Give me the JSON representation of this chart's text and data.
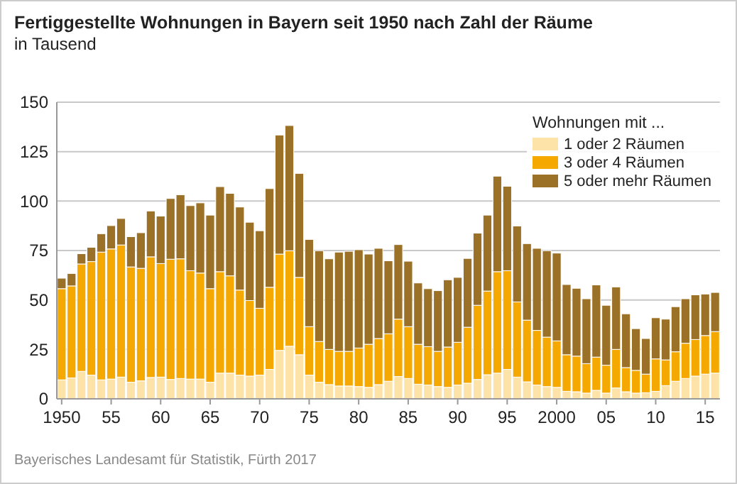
{
  "chart_data": {
    "type": "bar",
    "stacked": true,
    "title": "Fertiggestellte Wohnungen in Bayern seit 1950 nach Zahl der Räume",
    "subtitle": "in Tausend",
    "legend_title": "Wohnungen mit ...",
    "annotations": [
      "Bayerisches Landesamt für Statistik, Fürth 2017"
    ],
    "categories": [
      "1950",
      null,
      null,
      null,
      null,
      "55",
      null,
      null,
      null,
      null,
      "60",
      null,
      null,
      null,
      null,
      "65",
      null,
      null,
      null,
      null,
      "70",
      null,
      null,
      null,
      null,
      "75",
      null,
      null,
      null,
      null,
      "80",
      null,
      null,
      null,
      null,
      "85",
      null,
      null,
      null,
      null,
      "90",
      null,
      null,
      null,
      null,
      "95",
      null,
      null,
      null,
      null,
      "2000",
      null,
      null,
      null,
      null,
      "05",
      null,
      null,
      null,
      null,
      "10",
      null,
      null,
      null,
      null,
      "15",
      null
    ],
    "series": [
      {
        "name": "1 oder 2 Räumen",
        "color": "#fde3a7",
        "values": [
          9.6,
          10.6,
          13.9,
          12,
          9.6,
          10,
          11,
          8.4,
          9.1,
          10.8,
          11,
          9.8,
          10.3,
          10,
          10,
          8.4,
          13,
          13,
          12,
          11.5,
          12,
          14.9,
          24.5,
          26.6,
          22.3,
          12,
          8.4,
          7.2,
          6.5,
          6.5,
          6.2,
          5.8,
          7.2,
          8.9,
          11.3,
          10.3,
          7.4,
          7,
          6.2,
          5.8,
          7,
          7.9,
          9.8,
          12.2,
          13,
          14.9,
          11,
          8.6,
          7,
          6.2,
          5.8,
          3.8,
          3.6,
          2.9,
          4.3,
          2.9,
          5.5,
          3.6,
          2.9,
          3.1,
          3.8,
          6.7,
          8.9,
          10.3,
          11.5,
          12.5,
          13
        ]
      },
      {
        "name": "3 oder 4 Räumen",
        "color": "#f5a800",
        "values": [
          46.1,
          46.5,
          54.3,
          57.4,
          64.6,
          65.8,
          66.8,
          58.3,
          56.9,
          61,
          57.4,
          60.8,
          60.5,
          54.8,
          53.6,
          47.3,
          51.3,
          49.2,
          43,
          38.2,
          33.8,
          41.5,
          48.7,
          48.3,
          39.1,
          24.5,
          20.6,
          17.8,
          17.5,
          17.5,
          19.5,
          21.8,
          23.3,
          24,
          29,
          26.2,
          20.2,
          19.4,
          17.8,
          20.4,
          21.6,
          28.3,
          37.5,
          42.3,
          51.3,
          49.9,
          38,
          31.2,
          27.6,
          25,
          23.5,
          18.5,
          18,
          14.9,
          16.8,
          14.1,
          19.5,
          12.2,
          11.5,
          9.4,
          16.4,
          13,
          14.9,
          17.8,
          18.5,
          19.5,
          21
        ]
      },
      {
        "name": "5 oder mehr Räumen",
        "color": "#9b7128",
        "values": [
          5.3,
          6.3,
          5.2,
          7.2,
          9.3,
          11.8,
          13.4,
          15.3,
          18,
          23.2,
          24,
          30.7,
          32.4,
          32.9,
          35.5,
          37.2,
          43,
          41.7,
          42,
          39.6,
          39.2,
          49.9,
          60.2,
          63.3,
          52.6,
          44.1,
          45.9,
          45.8,
          50.2,
          50.6,
          49.7,
          45.6,
          45.6,
          36.9,
          37.7,
          33.1,
          31,
          29.3,
          30.7,
          34,
          32.8,
          34.8,
          36.5,
          38.4,
          48.3,
          42.7,
          38.4,
          38.7,
          41.5,
          43.7,
          44.4,
          35.5,
          34.3,
          32.8,
          36.5,
          30.3,
          31.6,
          27.2,
          21.1,
          18,
          20.8,
          20.6,
          22.8,
          22.5,
          22.6,
          21,
          19.8
        ]
      }
    ],
    "ylim": [
      0,
      150
    ],
    "yticks": [
      0,
      25,
      50,
      75,
      100,
      125,
      150
    ],
    "grid": "y",
    "legend": "top right"
  }
}
